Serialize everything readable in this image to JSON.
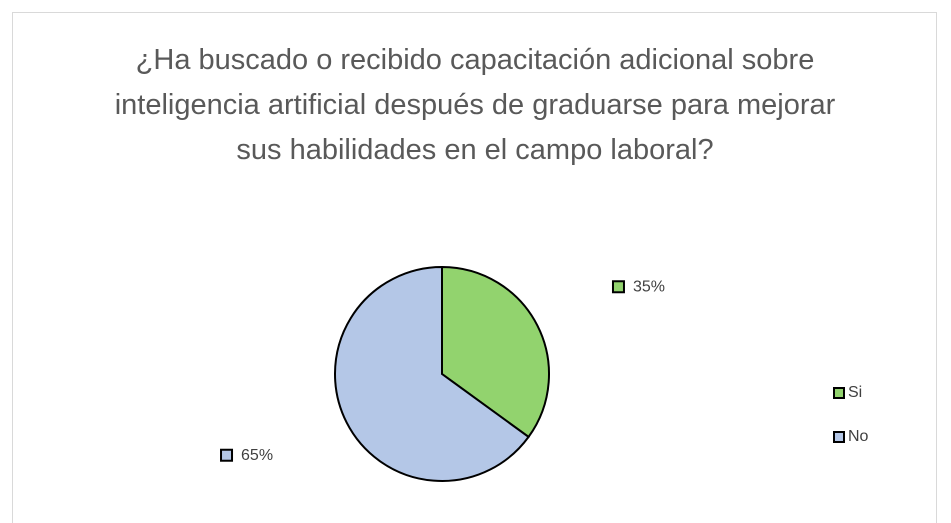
{
  "chart_data": {
    "type": "pie",
    "title": "¿Ha buscado o recibido capacitación adicional sobre inteligencia artificial después de graduarse para mejorar sus habilidades en el campo laboral?",
    "categories": [
      "Si",
      "No"
    ],
    "values": [
      35,
      65
    ],
    "value_labels": [
      "35%",
      "65%"
    ],
    "colors": [
      "#92d36e",
      "#b4c7e7"
    ],
    "legend": "right"
  }
}
